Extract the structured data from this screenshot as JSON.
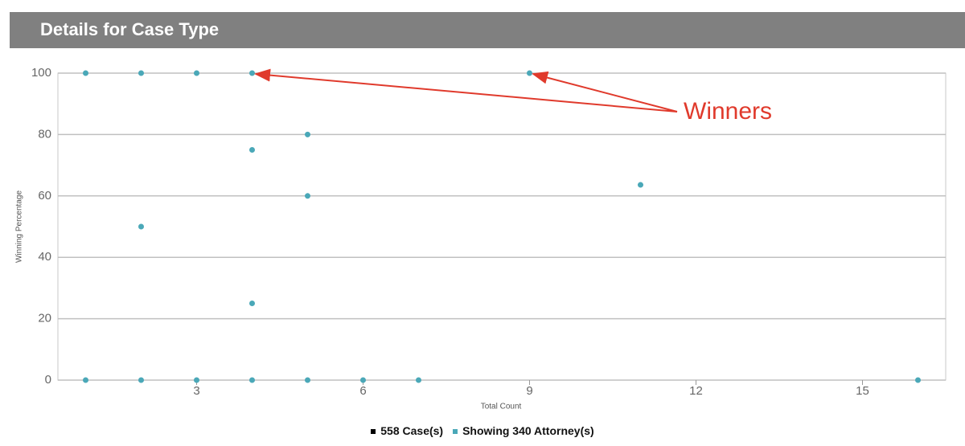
{
  "header": {
    "title": "Details for Case Type"
  },
  "chart_data": {
    "type": "scatter",
    "x_label": "Total Count",
    "y_label": "Winning Percentage",
    "annotation": "Winners",
    "xlim": [
      0.5,
      16.5
    ],
    "xticks": [
      3,
      6,
      9,
      12,
      15
    ],
    "ylim": [
      0,
      100
    ],
    "yticks": [
      0,
      20,
      40,
      60,
      80,
      100
    ],
    "grid": true,
    "series": [
      {
        "name": "558 Case(s)",
        "color": "#000000",
        "x": [],
        "values": []
      },
      {
        "name": "Showing 340 Attorney(s)",
        "color": "#4aa8b8",
        "x": [
          1,
          2,
          3,
          4,
          9,
          5,
          4,
          5,
          11,
          2,
          4,
          1,
          2,
          3,
          4,
          5,
          6,
          7,
          16
        ],
        "values": [
          100,
          100,
          100,
          100,
          100,
          80,
          75,
          60,
          63.6,
          50,
          25,
          0,
          0,
          0,
          0,
          0,
          0,
          0,
          0
        ]
      }
    ]
  }
}
